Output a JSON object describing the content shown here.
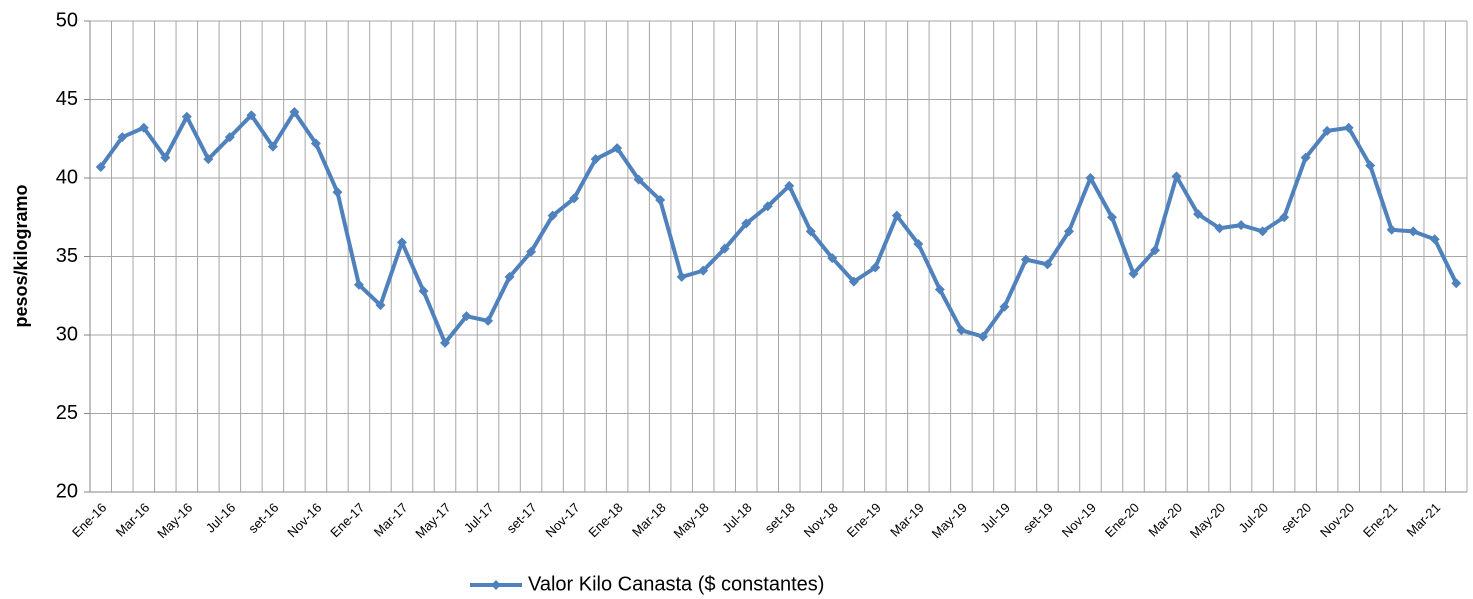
{
  "chart_data": {
    "type": "line",
    "y_label": "pesos/kilogramo",
    "categories": [
      "Ene-16",
      null,
      "Mar-16",
      null,
      "May-16",
      null,
      "Jul-16",
      null,
      "set-16",
      null,
      "Nov-16",
      null,
      "Ene-17",
      null,
      "Mar-17",
      null,
      "May-17",
      null,
      "Jul-17",
      null,
      "set-17",
      null,
      "Nov-17",
      null,
      "Ene-18",
      null,
      "Mar-18",
      null,
      "May-18",
      null,
      "Jul-18",
      null,
      "set-18",
      null,
      "Nov-18",
      null,
      "Ene-19",
      null,
      "Mar-19",
      null,
      "May-19",
      null,
      "Jul-19",
      null,
      "set-19",
      null,
      "Nov-19",
      null,
      "Ene-20",
      null,
      "Mar-20",
      null,
      "May-20",
      null,
      "Jul-20",
      null,
      "set-20",
      null,
      "Nov-20",
      null,
      "Ene-21",
      null,
      "Mar-21",
      null
    ],
    "series": [
      {
        "name": "Valor Kilo Canasta ($ constantes)",
        "color": "#4f81bd",
        "values": [
          40.7,
          42.6,
          43.2,
          41.3,
          43.9,
          41.2,
          42.6,
          44.0,
          42.0,
          44.2,
          42.2,
          39.1,
          33.2,
          31.9,
          35.9,
          32.8,
          29.5,
          31.2,
          30.9,
          33.7,
          35.3,
          37.6,
          38.7,
          41.2,
          41.9,
          39.9,
          38.6,
          33.7,
          34.1,
          35.5,
          37.1,
          38.2,
          39.5,
          36.6,
          34.9,
          33.4,
          34.3,
          37.6,
          35.8,
          32.9,
          30.3,
          29.9,
          31.8,
          34.8,
          34.5,
          36.6,
          40.0,
          37.5,
          33.9,
          35.4,
          40.1,
          37.7,
          36.8,
          37.0,
          36.6,
          37.5,
          41.3,
          43.0,
          43.2,
          40.8,
          36.7,
          36.6,
          36.1,
          33.3
        ]
      }
    ],
    "ylim": [
      20,
      50
    ],
    "yticks": [
      20,
      25,
      30,
      35,
      40,
      45,
      50
    ],
    "grid": true,
    "legend": "bottom"
  }
}
